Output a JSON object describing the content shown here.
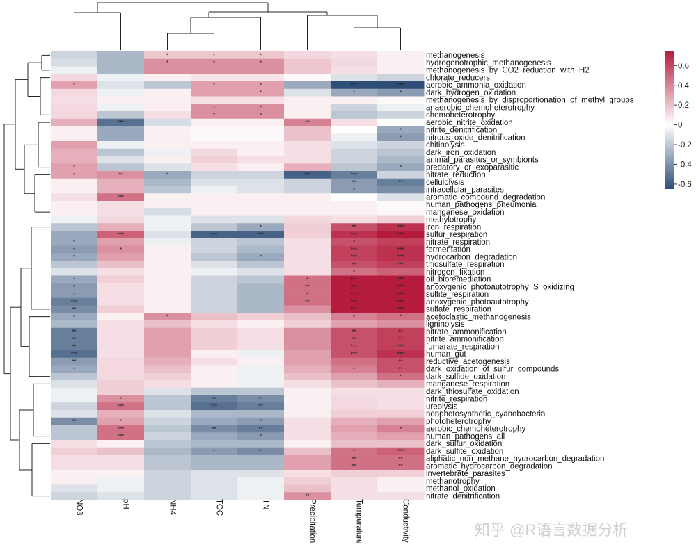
{
  "chart_data": {
    "type": "heatmap",
    "title": "",
    "columns": [
      "NO3",
      "pH",
      "NH4",
      "TOC",
      "TN",
      "Precipitation",
      "Temperature",
      "Conductivity"
    ],
    "rows": [
      "methanogenesis",
      "hydrogenotrophic_methanogenesis",
      "methanogenesis_by_CO2_reduction_with_H2",
      "chlorate_reducers",
      "aerobic_ammonia_oxidation",
      "dark_hydrogen_oxidation",
      "methanogenesis_by_disproportionation_of_methyl_groups",
      "anaerobic_chemoheterotrophy",
      "chemoheterotrophy",
      "aerobic_nitrite_oxidation",
      "nitrite_denitrification",
      "nitrous_oxide_denitrification",
      "chitinolysis",
      "dark_iron_oxidation",
      "animal_parasites_or_symbionts",
      "predatory_or_exoparasitic",
      "nitrate_reduction",
      "cellulolysis",
      "intracellular_parasites",
      "aromatic_compound_degradation",
      "human_pathogens_pneumonia",
      "manganese_oxidation",
      "methylotrophy",
      "iron_respiration",
      "sulfur_respiration",
      "nitrate_respiration",
      "fermentation",
      "hydrocarbon_degradation",
      "thiosulfate_respiration",
      "nitrogen_fixation",
      "oil_bioremediation",
      "anoxygenic_photoautotrophy_S_oxidizing",
      "sulfite_respiration",
      "anoxygenic_photoautotrophy",
      "sulfate_respiration",
      "acetoclastic_methanogenesis",
      "ligninolysis",
      "nitrate_ammonification",
      "nitrite_ammonification",
      "fumarate_respiration",
      "human_gut",
      "reductive_acetogenesis",
      "dark_oxidation_of_sulfur_compounds",
      "dark_sulfide_oxidation",
      "manganese_respiration",
      "dark_thiosulfate_oxidation",
      "nitrite_respiration",
      "ureolysis",
      "nonphotosynthetic_cyanobacteria",
      "photoheterotrophy",
      "aerobic_chemoheterotrophy",
      "human_pathogens_all",
      "dark_sulfur_oxidation",
      "dark_sulfite_oxidation",
      "aliphatic_non_methane_hydrocarbon_degradation",
      "aromatic_hydrocarbon_degradation",
      "invertebrate_parasites",
      "methanotrophy",
      "methanol_oxidation",
      "nitrate_denitrification"
    ],
    "values": [
      [
        -0.15,
        -0.25,
        0.18,
        0.18,
        0.18,
        0.12,
        0.1,
        0.05
      ],
      [
        -0.12,
        -0.25,
        0.35,
        0.35,
        0.35,
        0.18,
        0.12,
        0.05
      ],
      [
        -0.05,
        -0.25,
        0.35,
        0.35,
        0.35,
        0.18,
        0.1,
        0.05
      ],
      [
        0.12,
        -0.05,
        0.05,
        0.08,
        0.08,
        0.02,
        -0.1,
        -0.15
      ],
      [
        0.3,
        -0.1,
        -0.2,
        0.3,
        0.3,
        -0.3,
        -0.62,
        -0.68
      ],
      [
        0.12,
        -0.05,
        0.05,
        0.3,
        0.3,
        -0.1,
        -0.3,
        -0.35
      ],
      [
        0.1,
        0.05,
        0.05,
        0.1,
        0.1,
        0.05,
        0.05,
        0.02
      ],
      [
        0.12,
        -0.05,
        0.05,
        0.35,
        0.35,
        0.05,
        -0.15,
        -0.05
      ],
      [
        0.12,
        -0.2,
        0.1,
        0.35,
        0.35,
        0.05,
        -0.2,
        -0.15
      ],
      [
        0.25,
        -0.5,
        -0.12,
        0.05,
        0.05,
        0.4,
        0.1,
        0.0
      ],
      [
        0.05,
        -0.3,
        0.05,
        0.02,
        0.02,
        0.2,
        0.0,
        -0.3
      ],
      [
        0.05,
        -0.3,
        0.05,
        0.02,
        0.02,
        0.2,
        -0.05,
        -0.35
      ],
      [
        0.3,
        -0.05,
        0.05,
        0.05,
        0.05,
        0.1,
        -0.1,
        -0.15
      ],
      [
        0.25,
        -0.2,
        -0.05,
        0.12,
        0.05,
        0.1,
        -0.15,
        -0.2
      ],
      [
        0.25,
        -0.1,
        0.05,
        0.15,
        0.1,
        0.1,
        -0.15,
        -0.25
      ],
      [
        0.3,
        -0.2,
        -0.1,
        0.1,
        0.05,
        0.25,
        -0.2,
        -0.3
      ],
      [
        0.3,
        0.35,
        -0.3,
        -0.15,
        -0.15,
        -0.55,
        -0.45,
        -0.15
      ],
      [
        0.05,
        0.25,
        -0.25,
        -0.1,
        -0.1,
        -0.15,
        -0.35,
        -0.45
      ],
      [
        0.05,
        0.25,
        -0.2,
        -0.05,
        -0.1,
        -0.15,
        -0.35,
        -0.4
      ],
      [
        0.1,
        0.45,
        0.05,
        0.05,
        0.05,
        0.05,
        0.0,
        -0.1
      ],
      [
        0.05,
        0.1,
        0.05,
        0.05,
        0.05,
        0.05,
        0.05,
        0.02
      ],
      [
        0.05,
        0.1,
        -0.12,
        0.05,
        0.05,
        0.05,
        0.05,
        0.02
      ],
      [
        -0.05,
        0.12,
        -0.05,
        -0.1,
        -0.1,
        0.12,
        0.1,
        0.15
      ],
      [
        -0.2,
        0.25,
        -0.05,
        -0.2,
        -0.3,
        0.15,
        0.55,
        0.65
      ],
      [
        -0.3,
        0.5,
        -0.1,
        -0.55,
        -0.55,
        0.15,
        0.65,
        0.72
      ],
      [
        -0.3,
        0.3,
        -0.05,
        -0.15,
        -0.2,
        0.1,
        0.55,
        0.6
      ],
      [
        -0.35,
        0.35,
        0.05,
        -0.15,
        -0.25,
        0.1,
        0.6,
        0.65
      ],
      [
        -0.3,
        0.3,
        0.05,
        -0.2,
        -0.3,
        0.1,
        0.6,
        0.65
      ],
      [
        -0.2,
        0.2,
        0.05,
        -0.1,
        -0.2,
        0.1,
        0.55,
        0.6
      ],
      [
        -0.1,
        0.1,
        0.05,
        -0.05,
        -0.1,
        0.1,
        0.45,
        0.5
      ],
      [
        -0.3,
        0.15,
        0.05,
        -0.15,
        -0.2,
        0.45,
        0.72,
        0.72
      ],
      [
        -0.35,
        0.1,
        0.05,
        -0.15,
        -0.25,
        0.45,
        0.72,
        0.72
      ],
      [
        -0.35,
        0.1,
        0.05,
        -0.15,
        -0.25,
        0.45,
        0.72,
        0.72
      ],
      [
        -0.45,
        0.1,
        0.05,
        -0.15,
        -0.25,
        0.45,
        0.72,
        0.72
      ],
      [
        -0.4,
        0.15,
        0.05,
        -0.15,
        -0.25,
        0.35,
        0.72,
        0.72
      ],
      [
        -0.3,
        0.05,
        0.35,
        0.2,
        0.15,
        0.2,
        0.4,
        0.45
      ],
      [
        -0.25,
        0.1,
        0.2,
        0.1,
        0.05,
        0.15,
        0.3,
        0.35
      ],
      [
        -0.45,
        0.1,
        0.3,
        0.15,
        0.1,
        0.35,
        0.55,
        0.6
      ],
      [
        -0.45,
        0.1,
        0.3,
        0.15,
        0.1,
        0.35,
        0.55,
        0.6
      ],
      [
        -0.45,
        0.1,
        0.3,
        0.15,
        0.1,
        0.35,
        0.55,
        0.6
      ],
      [
        -0.5,
        0.1,
        0.3,
        0.05,
        -0.05,
        0.3,
        0.55,
        0.65
      ],
      [
        -0.35,
        0.12,
        0.25,
        0.1,
        0.05,
        0.3,
        0.45,
        0.55
      ],
      [
        -0.3,
        0.12,
        0.2,
        0.05,
        -0.05,
        0.25,
        0.4,
        0.55
      ],
      [
        -0.2,
        0.12,
        0.15,
        0.05,
        -0.05,
        0.2,
        0.3,
        0.45
      ],
      [
        -0.1,
        0.15,
        0.1,
        0.05,
        -0.05,
        0.1,
        0.2,
        0.25
      ],
      [
        -0.05,
        0.15,
        -0.1,
        -0.2,
        -0.2,
        0.05,
        0.1,
        0.1
      ],
      [
        -0.05,
        0.35,
        -0.2,
        -0.45,
        -0.4,
        0.05,
        0.12,
        0.1
      ],
      [
        -0.15,
        0.45,
        -0.2,
        -0.5,
        -0.45,
        0.05,
        0.12,
        0.1
      ],
      [
        -0.1,
        0.25,
        -0.1,
        -0.25,
        -0.25,
        0.05,
        0.15,
        0.15
      ],
      [
        -0.4,
        0.3,
        -0.15,
        -0.3,
        -0.35,
        0.1,
        0.25,
        0.3
      ],
      [
        -0.2,
        0.45,
        -0.2,
        -0.4,
        -0.45,
        0.1,
        0.3,
        0.4
      ],
      [
        -0.2,
        0.45,
        -0.15,
        -0.3,
        -0.35,
        0.1,
        0.25,
        0.3
      ],
      [
        0.1,
        0.05,
        -0.2,
        -0.25,
        -0.25,
        0.05,
        0.2,
        0.2
      ],
      [
        0.15,
        0.2,
        -0.25,
        -0.35,
        -0.4,
        0.2,
        0.45,
        0.5
      ],
      [
        0.1,
        0.1,
        -0.2,
        -0.25,
        -0.25,
        0.3,
        0.45,
        0.45
      ],
      [
        0.1,
        0.1,
        -0.2,
        -0.25,
        -0.25,
        0.3,
        0.45,
        0.45
      ],
      [
        0.05,
        0.05,
        -0.15,
        -0.1,
        -0.1,
        0.1,
        0.15,
        0.15
      ],
      [
        0.05,
        -0.05,
        -0.15,
        -0.1,
        -0.05,
        0.15,
        0.1,
        0.05
      ],
      [
        -0.1,
        -0.05,
        -0.15,
        -0.1,
        -0.05,
        0.2,
        0.1,
        0.05
      ],
      [
        -0.15,
        -0.1,
        -0.15,
        -0.1,
        -0.05,
        0.35,
        0.1,
        0.1
      ]
    ],
    "stars": [
      [
        "",
        "",
        "*",
        "*",
        "*",
        "",
        "",
        ""
      ],
      [
        "",
        "",
        "*",
        "*",
        "*",
        "",
        "",
        ""
      ],
      [
        "",
        "",
        "",
        "",
        "",
        "",
        "",
        ""
      ],
      [
        "",
        "",
        "",
        "",
        "",
        "",
        "",
        ""
      ],
      [
        "*",
        "",
        "",
        "*",
        "*",
        "",
        "***",
        "***"
      ],
      [
        "",
        "",
        "",
        "",
        "*",
        "",
        "*",
        "*"
      ],
      [
        "",
        "",
        "",
        "",
        "",
        "",
        "",
        ""
      ],
      [
        "",
        "",
        "",
        "*",
        "*",
        "",
        "",
        ""
      ],
      [
        "",
        "",
        "",
        "*",
        "*",
        "",
        "",
        ""
      ],
      [
        "",
        "***",
        "",
        "",
        "",
        "**",
        "",
        ""
      ],
      [
        "",
        "",
        "",
        "",
        "",
        "",
        "",
        "*"
      ],
      [
        "",
        "",
        "",
        "",
        "",
        "",
        "",
        "*"
      ],
      [
        "",
        "",
        "",
        "",
        "",
        "",
        "",
        ""
      ],
      [
        "",
        "",
        "",
        "",
        "",
        "",
        "",
        ""
      ],
      [
        "",
        "",
        "",
        "",
        "",
        "",
        "",
        ""
      ],
      [
        "*",
        "",
        "",
        "",
        "",
        "",
        "",
        "*"
      ],
      [
        "*",
        "**",
        "*",
        "",
        "",
        "***",
        "***",
        ""
      ],
      [
        "",
        "",
        "",
        "",
        "",
        "",
        "**",
        "**"
      ],
      [
        "",
        "",
        "",
        "",
        "",
        "",
        "*",
        ""
      ],
      [
        "",
        "***",
        "",
        "",
        "",
        "",
        "",
        ""
      ],
      [
        "",
        "",
        "",
        "",
        "",
        "",
        "",
        ""
      ],
      [
        "",
        "",
        "",
        "",
        "",
        "",
        "",
        ""
      ],
      [
        "",
        "",
        "",
        "",
        "",
        "",
        "",
        ""
      ],
      [
        "",
        "",
        "",
        "",
        "*",
        "",
        "**",
        "***"
      ],
      [
        "",
        "***",
        "",
        "***",
        "***",
        "",
        "***",
        "***"
      ],
      [
        "*",
        "",
        "",
        "",
        "",
        "",
        "*",
        ""
      ],
      [
        "*",
        "*",
        "",
        "",
        "",
        "",
        "***",
        "***"
      ],
      [
        "*",
        "",
        "",
        "",
        "*",
        "",
        "***",
        "***"
      ],
      [
        "",
        "",
        "",
        "",
        "",
        "",
        "**",
        "***"
      ],
      [
        "",
        "",
        "",
        "",
        "",
        "",
        "*",
        ""
      ],
      [
        "*",
        "",
        "",
        "",
        "",
        "*",
        "***",
        "***"
      ],
      [
        "*",
        "",
        "",
        "",
        "",
        "**",
        "***",
        "***"
      ],
      [
        "*",
        "",
        "",
        "",
        "",
        "*",
        "***",
        "***"
      ],
      [
        "***",
        "",
        "",
        "",
        "",
        "**",
        "***",
        "***"
      ],
      [
        "**",
        "",
        "",
        "",
        "",
        "",
        "***",
        "***"
      ],
      [
        "*",
        "",
        "*",
        "",
        "",
        "",
        "*",
        "*"
      ],
      [
        "",
        "",
        "",
        "",
        "",
        "",
        "",
        ""
      ],
      [
        "**",
        "",
        "",
        "",
        "",
        "",
        "**",
        "**"
      ],
      [
        "**",
        "",
        "",
        "",
        "",
        "",
        "**",
        "**"
      ],
      [
        "**",
        "",
        "",
        "",
        "",
        "",
        "***",
        "***"
      ],
      [
        "***",
        "",
        "",
        "",
        "",
        "",
        "***",
        "***"
      ],
      [
        "**",
        "",
        "",
        "",
        "",
        "",
        "",
        "**"
      ],
      [
        "*",
        "",
        "",
        "",
        "",
        "",
        "*",
        "**"
      ],
      [
        "",
        "",
        "",
        "",
        "",
        "",
        "",
        "*"
      ],
      [
        "",
        "",
        "",
        "",
        "",
        "",
        "",
        ""
      ],
      [
        "",
        "",
        "",
        "",
        "",
        "",
        "",
        ""
      ],
      [
        "",
        "*",
        "",
        "**",
        "**",
        "",
        "",
        ""
      ],
      [
        "",
        "***",
        "",
        "***",
        "**",
        "",
        "",
        ""
      ],
      [
        "",
        "",
        "",
        "",
        "",
        "",
        "",
        ""
      ],
      [
        "**",
        "*",
        "",
        "",
        "*",
        "",
        "",
        ""
      ],
      [
        "",
        "***",
        "",
        "**",
        "**",
        "",
        "",
        "*"
      ],
      [
        "",
        "***",
        "",
        "",
        "*",
        "",
        "",
        ""
      ],
      [
        "",
        "",
        "",
        "",
        "",
        "",
        "",
        ""
      ],
      [
        "",
        "",
        "",
        "*",
        "**",
        "",
        "*",
        "***"
      ],
      [
        "",
        "",
        "",
        "",
        "",
        "",
        "**",
        "**"
      ],
      [
        "",
        "",
        "",
        "",
        "",
        "",
        "**",
        "**"
      ],
      [
        "",
        "",
        "",
        "",
        "",
        "",
        "",
        ""
      ],
      [
        "",
        "",
        "",
        "",
        "",
        "",
        "",
        ""
      ],
      [
        "",
        "",
        "",
        "",
        "",
        "",
        "",
        ""
      ],
      [
        "",
        "",
        "",
        "",
        "",
        "**",
        "",
        ""
      ]
    ],
    "legend": {
      "ticks": [
        0.6,
        0.4,
        0.2,
        0,
        -0.2,
        -0.4,
        -0.6
      ],
      "range": [
        -0.65,
        0.75
      ]
    },
    "colors": {
      "low": "#2f4e77",
      "mid": "#ffffff",
      "high": "#b51b3c"
    }
  },
  "watermark": "知乎 @R语言数据分析"
}
